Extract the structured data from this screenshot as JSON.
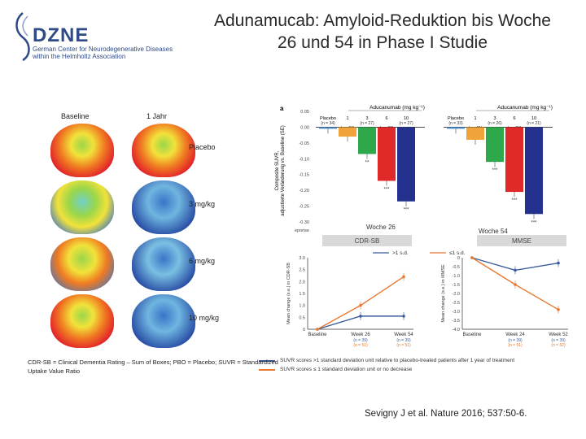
{
  "title": "Adunamucab: Amyloid-Reduktion bis Woche 26 und 54 in Phase I Studie",
  "logo": {
    "name": "DZNE",
    "line1": "German Center for Neurodegenerative Diseases",
    "line2": "within the Helmholtz Association"
  },
  "brain_panel": {
    "col_baseline": "Baseline",
    "col_year": "1 Jahr",
    "rows": [
      "Placebo",
      "3 mg/kg",
      "6 mg/kg",
      "10 mg/kg"
    ]
  },
  "colors": {
    "placebo": "#4d8fcf",
    "dose1": "#f0a33a",
    "dose3": "#2ea84a",
    "dose6": "#e02a2a",
    "dose10": "#24318e",
    "orange": "#e9782f",
    "blue": "#3a5d9c"
  },
  "chart_data": [
    {
      "type": "bar",
      "panel_label": "a",
      "title": "Woche 26",
      "group_header": "Aducanumab (mg kg⁻¹)",
      "ylabel": "Composite SUVR, adjustierte Veränderung vs. Baseline (SE)",
      "yticks": [
        "0.05",
        "0.00",
        "-0.05",
        "-0.10",
        "-0.15",
        "-0.20",
        "-0.25",
        "-0.30"
      ],
      "ylim": [
        -0.3,
        0.05
      ],
      "xlabel": "eporise",
      "categories": [
        "Placebo",
        "1",
        "3",
        "6",
        "10"
      ],
      "n_labels": [
        "(n = 34)",
        "(n = 26)",
        "(n = 27)",
        "(n = 28)",
        "(n = 27)"
      ],
      "values": [
        -0.005,
        -0.03,
        -0.085,
        -0.17,
        -0.235
      ],
      "sig": [
        "",
        "",
        "**",
        "***",
        "***"
      ]
    },
    {
      "type": "bar",
      "title": "Woche 54",
      "group_header": "Aducanumab (mg kg⁻¹)",
      "categories": [
        "Placebo",
        "1",
        "3",
        "6",
        "10"
      ],
      "n_labels": [
        "(n = 33)",
        "(n = 21)",
        "(n = 26)",
        "(n = 23)",
        "(n = 21)"
      ],
      "values": [
        -0.005,
        -0.04,
        -0.11,
        -0.205,
        -0.275
      ],
      "sig": [
        "",
        "",
        "***",
        "***",
        "***"
      ]
    },
    {
      "type": "line",
      "header": "CDR-SB",
      "legend": [
        ">1 s.d.",
        "≤1 s.d."
      ],
      "ylabel": "Mean change (s.e.) in CDR-SB",
      "ylim": [
        0,
        3.0
      ],
      "yticks": [
        "0",
        "0.5",
        "1.0",
        "1.5",
        "2.0",
        "2.5",
        "3.0"
      ],
      "categories": [
        "Baseline",
        "Week 26",
        "Week 54"
      ],
      "n_labels": [
        [
          "(n = 39)",
          "(n = 51)"
        ],
        [
          "(n = 39)",
          "(n = 51)"
        ]
      ],
      "series": [
        {
          "name": ">1 s.d.",
          "values": [
            0,
            0.55,
            0.55
          ]
        },
        {
          "name": "≤1 s.d.",
          "values": [
            0,
            1.0,
            2.2
          ]
        }
      ]
    },
    {
      "type": "line",
      "header": "MMSE",
      "ylabel": "Mean change (s.e.) in MMSE",
      "ylim": [
        -4.0,
        0
      ],
      "yticks": [
        "0",
        "-0.5",
        "-1.0",
        "-1.5",
        "-2.0",
        "-2.5",
        "-3.0",
        "-3.5",
        "-4.0"
      ],
      "categories": [
        "Baseline",
        "Week 24",
        "Week 52"
      ],
      "n_labels": [
        [
          "(n = 39)",
          "(n = 51)"
        ],
        [
          "(n = 39)",
          "(n = 52)"
        ]
      ],
      "series": [
        {
          "name": ">1 s.d.",
          "values": [
            0,
            -0.7,
            -0.3
          ]
        },
        {
          "name": "≤1 s.d.",
          "values": [
            0,
            -1.5,
            -2.9
          ]
        }
      ]
    }
  ],
  "bottom_legend": [
    "SUVR scores >1 standard deviation unit relative to placebo-treated patients after 1 year of treatment",
    "SUVR scores ≤ 1 standard deviation unit or no decrease"
  ],
  "footnote": "CDR-SB = Clinical Dementia Rating – Sum of Boxes; PBO = Placebo; SUVR = Standardized Uptake Value Ratio",
  "citation": "Sevigny J et al. Nature 2016; 537:50-6."
}
